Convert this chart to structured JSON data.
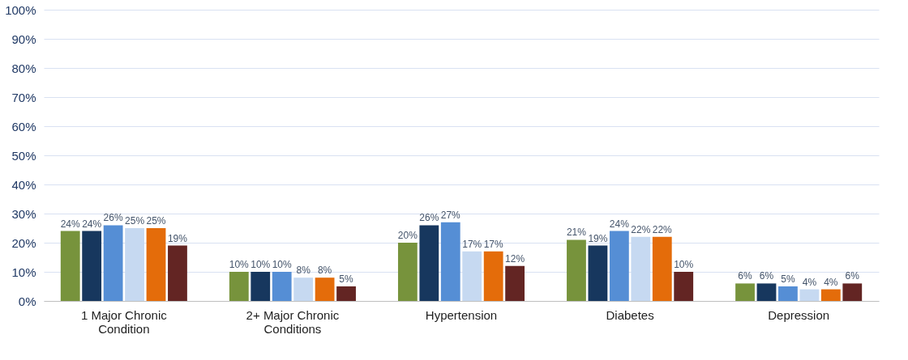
{
  "chart_data": {
    "type": "bar",
    "categories": [
      "1 Major Chronic Condition",
      "2+ Major Chronic Conditions",
      "Hypertension",
      "Diabetes",
      "Depression"
    ],
    "series": [
      {
        "color": "#77933c",
        "values": [
          24,
          10,
          20,
          21,
          6
        ],
        "value_labels": [
          "24%",
          "10%",
          "20%",
          "21%",
          "6%"
        ]
      },
      {
        "color": "#17375e",
        "values": [
          24,
          10,
          26,
          19,
          6
        ],
        "value_labels": [
          "24%",
          "10%",
          "26%",
          "19%",
          "6%"
        ]
      },
      {
        "color": "#558ed5",
        "values": [
          26,
          10,
          27,
          24,
          5
        ],
        "value_labels": [
          "26%",
          "10%",
          "27%",
          "24%",
          "5%"
        ]
      },
      {
        "color": "#c6d9f1",
        "values": [
          25,
          8,
          17,
          22,
          4
        ],
        "value_labels": [
          "25%",
          "8%",
          "17%",
          "22%",
          "4%"
        ]
      },
      {
        "color": "#e46c0a",
        "values": [
          25,
          8,
          17,
          22,
          4
        ],
        "value_labels": [
          "25%",
          "8%",
          "17%",
          "22%",
          "4%"
        ]
      },
      {
        "color": "#632523",
        "values": [
          19,
          5,
          12,
          10,
          6
        ],
        "value_labels": [
          "19%",
          "5%",
          "12%",
          "10%",
          "6%"
        ]
      }
    ],
    "ylim": [
      0,
      100
    ],
    "yticks": [
      {
        "value": 0,
        "label": "0%"
      },
      {
        "value": 10,
        "label": "10%"
      },
      {
        "value": 20,
        "label": "20%"
      },
      {
        "value": 30,
        "label": "30%"
      },
      {
        "value": 40,
        "label": "40%"
      },
      {
        "value": 50,
        "label": "50%"
      },
      {
        "value": 60,
        "label": "60%"
      },
      {
        "value": 70,
        "label": "70%"
      },
      {
        "value": 80,
        "label": "80%"
      },
      {
        "value": 90,
        "label": "90%"
      },
      {
        "value": 100,
        "label": "100%"
      }
    ],
    "grid": "y",
    "legend": false
  }
}
